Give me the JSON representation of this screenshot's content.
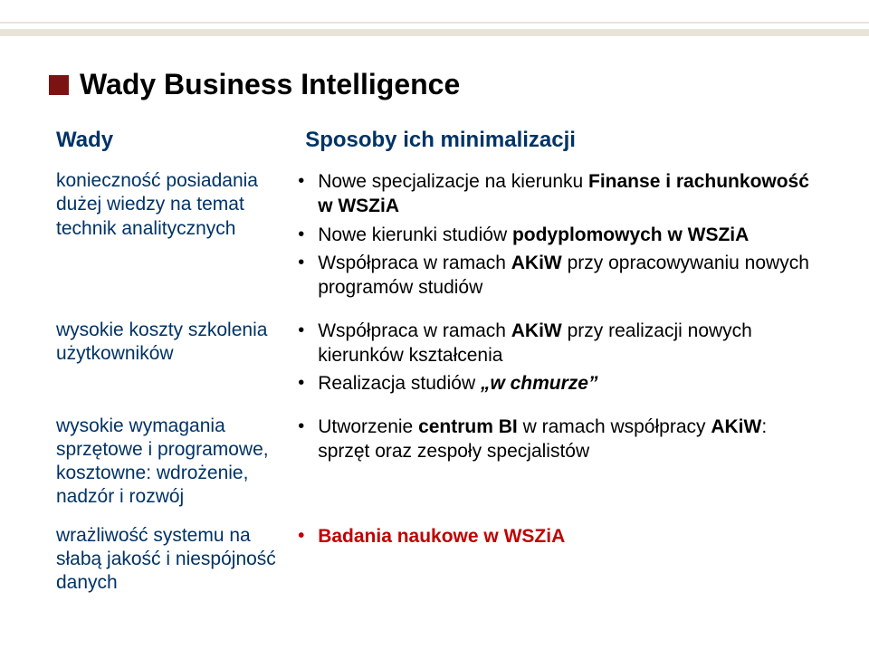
{
  "title": "Wady Business Intelligence",
  "headers": {
    "left": "Wady",
    "right": "Sposoby ich minimalizacji"
  },
  "rows": [
    {
      "left": "konieczność posiada­nia dużej wiedzy na temat technik anali­tycznych",
      "right_items": [
        {
          "pre": "Nowe specjalizacje na kierunku ",
          "bold": "Finanse i rachunkowość w WSZiA",
          "post": ""
        },
        {
          "pre": "Nowe kierunki studiów ",
          "bold": "podyplomowych w WSZiA",
          "post": ""
        },
        {
          "pre": "Współpraca w ramach ",
          "bold": "AKiW",
          "post": " przy opracowywaniu nowych programów studiów"
        }
      ]
    },
    {
      "left": "wysokie koszty szko­lenia użytkowników",
      "right_items": [
        {
          "pre": "Współpraca w ramach ",
          "bold": "AKiW",
          "post": " przy realizacji nowych kierunków kształcenia"
        },
        {
          "pre": "Realizacja studiów ",
          "bolditalic": "„w chmurze”",
          "post": ""
        }
      ]
    },
    {
      "left": "wysokie wymagania sprzętowe i progra­mowe, kosztowne: wdrożenie, nadzór i rozwój",
      "right_items": [
        {
          "pre": "Utworzenie ",
          "bold": "centrum BI",
          "post_pre": " w ramach współpracy ",
          "bold2": "AKiW",
          "post": ": sprzęt oraz zespoły specjalistów"
        }
      ]
    },
    {
      "left": "wrażliwość systemu na słabą jakość i niespójność danych",
      "right_red": "Badania naukowe w WSZiA"
    }
  ]
}
